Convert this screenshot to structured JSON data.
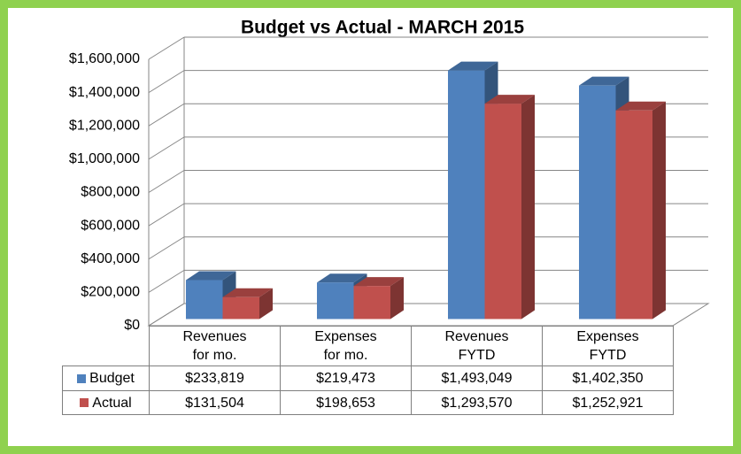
{
  "chart_data": {
    "type": "bar3d",
    "title": "Budget vs Actual - MARCH 2015",
    "categories": [
      "Revenues\nfor mo.",
      "Expenses\nfor mo.",
      "Revenues\nFYTD",
      "Expenses\nFYTD"
    ],
    "series": [
      {
        "name": "Budget",
        "color": "#4f81bd",
        "values": [
          233819,
          219473,
          1493049,
          1402350
        ],
        "value_labels": [
          "$233,819",
          "$219,473",
          "$1,493,049",
          "$1,402,350"
        ]
      },
      {
        "name": "Actual",
        "color": "#c0504d",
        "values": [
          131504,
          198653,
          1293570,
          1252921
        ],
        "value_labels": [
          "$131,504",
          "$198,653",
          "$1,293,570",
          "$1,252,921"
        ]
      }
    ],
    "ylim": [
      0,
      1600000
    ],
    "yticks": [
      {
        "value": 0,
        "label": "$0"
      },
      {
        "value": 200000,
        "label": "$200,000"
      },
      {
        "value": 400000,
        "label": "$400,000"
      },
      {
        "value": 600000,
        "label": "$600,000"
      },
      {
        "value": 800000,
        "label": "$800,000"
      },
      {
        "value": 1000000,
        "label": "$1,000,000"
      },
      {
        "value": 1200000,
        "label": "$1,200,000"
      },
      {
        "value": 1400000,
        "label": "$1,400,000"
      },
      {
        "value": 1600000,
        "label": "$1,600,000"
      }
    ],
    "grid": true,
    "legend": "table"
  }
}
